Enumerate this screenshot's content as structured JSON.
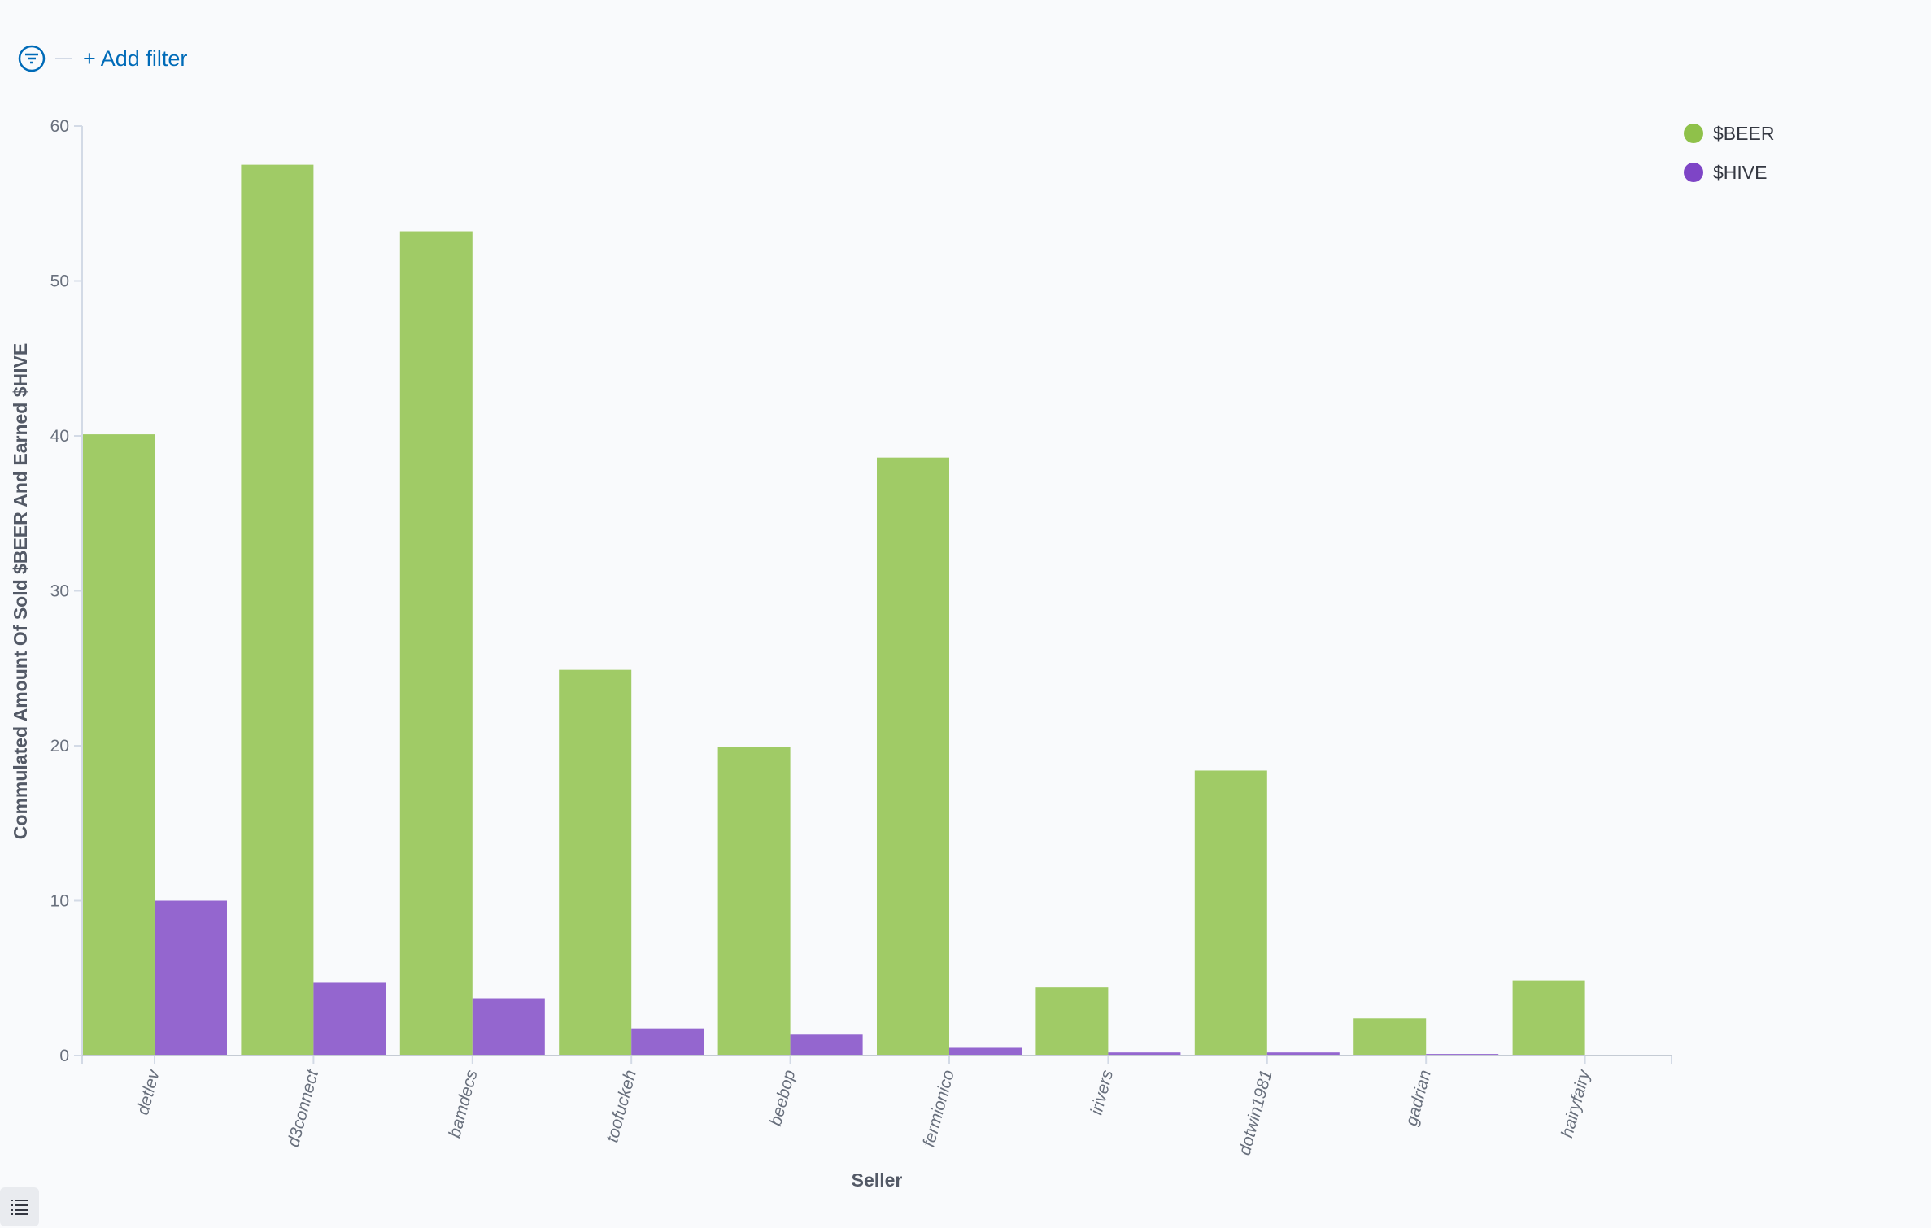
{
  "filter_bar": {
    "add_filter_label": "+ Add filter",
    "icon": "filter-icon"
  },
  "legend": [
    {
      "label": "$BEER",
      "color": "#8fc14a"
    },
    {
      "label": "$HIVE",
      "color": "#7e45c6"
    }
  ],
  "chart_data": {
    "type": "bar",
    "xlabel": "Seller",
    "ylabel": "Commulated Amount Of Sold $BEER And Earned $HIVE",
    "ylim": [
      0,
      60
    ],
    "yticks": [
      0,
      10,
      20,
      30,
      40,
      50,
      60
    ],
    "grid": false,
    "legend_position": "top-right",
    "categories": [
      "detlev",
      "d3connect",
      "bamdecs",
      "toofuckeh",
      "beebop",
      "fermionico",
      "irivers",
      "dotwin1981",
      "gadrian",
      "hairyfairy"
    ],
    "series": [
      {
        "name": "$BEER",
        "color": "#a0cb66",
        "values": [
          40.1,
          57.5,
          53.2,
          24.9,
          19.9,
          38.6,
          4.4,
          18.4,
          2.4,
          4.85
        ]
      },
      {
        "name": "$HIVE",
        "color": "#9466cf",
        "values": [
          10.0,
          4.7,
          3.7,
          1.75,
          1.35,
          0.5,
          0.2,
          0.2,
          0.1,
          0.02
        ]
      }
    ]
  }
}
